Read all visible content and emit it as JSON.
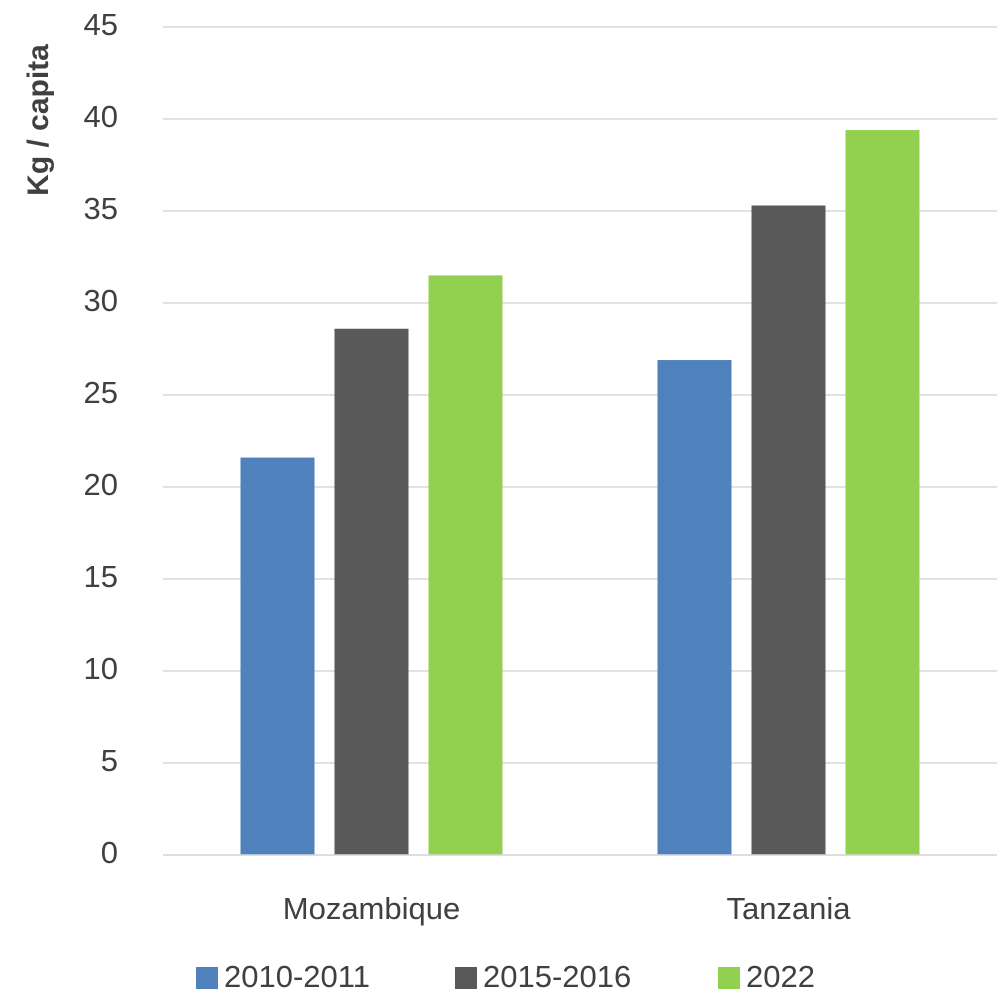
{
  "chart_data": {
    "type": "bar",
    "y_label": "Kg / capita",
    "categories": [
      "Mozambique",
      "Tanzania"
    ],
    "series": [
      {
        "name": "2010-2011",
        "color": "#4f81bd",
        "values": [
          21.6,
          26.9
        ]
      },
      {
        "name": "2015-2016",
        "color": "#595959",
        "values": [
          28.6,
          35.3
        ]
      },
      {
        "name": "2022",
        "color": "#92d050",
        "values": [
          31.5,
          39.4
        ]
      }
    ],
    "ylim": [
      0,
      45
    ],
    "yticks": [
      0,
      5,
      10,
      15,
      20,
      25,
      30,
      35,
      40,
      45
    ],
    "grid": true,
    "legend": "bottom"
  }
}
